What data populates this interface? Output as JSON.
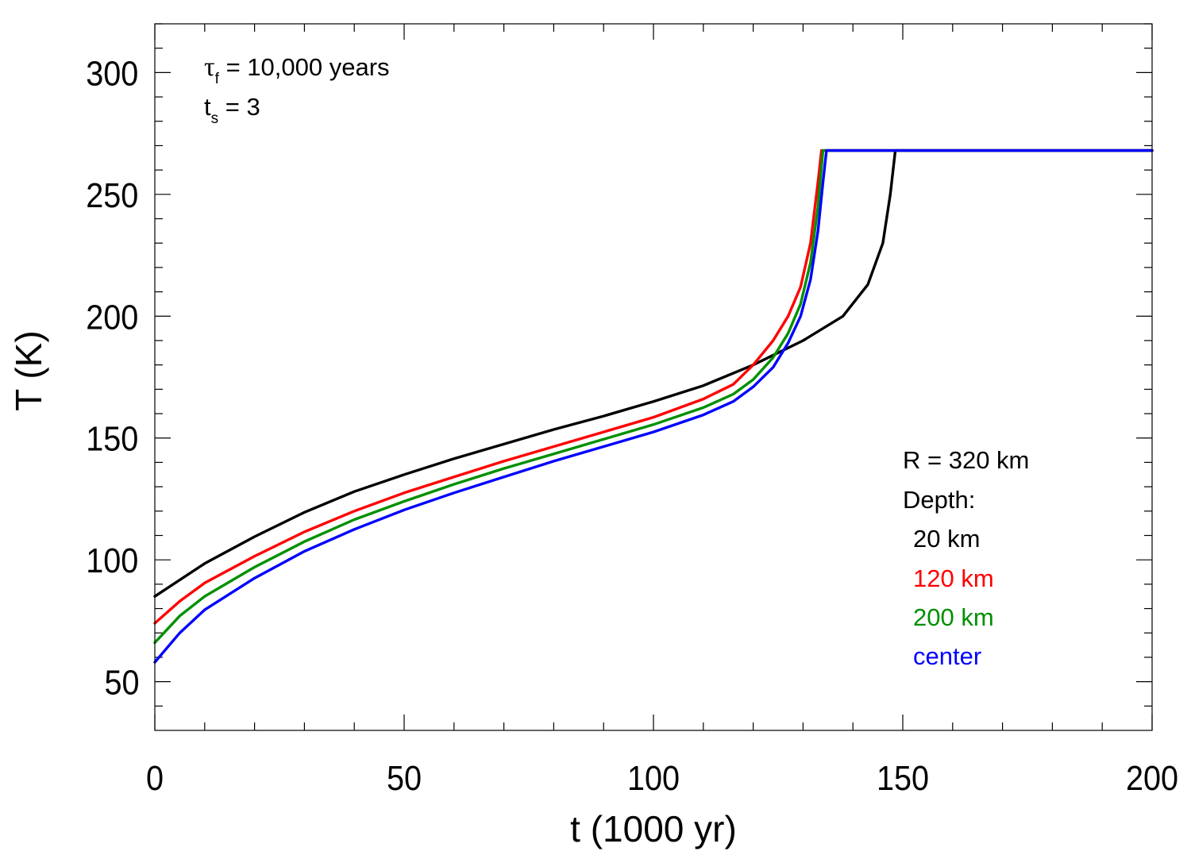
{
  "chart_data": {
    "type": "line",
    "xlabel": "t (1000 yr)",
    "ylabel": "T (K)",
    "xlim": [
      0,
      200
    ],
    "ylim": [
      30,
      320
    ],
    "x_ticks": [
      0,
      50,
      100,
      150,
      200
    ],
    "y_ticks": [
      50,
      100,
      150,
      200,
      250,
      300
    ],
    "grid": false,
    "annotations": {
      "tau_symbol": "τ",
      "tau_sub": "f",
      "tau_rest": " = 10,000 years",
      "ts_symbol": "t",
      "ts_sub": "s",
      "ts_rest": " = 3"
    },
    "legend": {
      "placement": "lower-right",
      "radius_text": "R = 320 km",
      "depth_title": "Depth:"
    },
    "series": [
      {
        "name": "20 km",
        "color": "#000000",
        "points": [
          [
            0,
            85
          ],
          [
            10,
            98.5
          ],
          [
            20,
            109.5
          ],
          [
            30,
            119.5
          ],
          [
            40,
            128
          ],
          [
            50,
            135
          ],
          [
            60,
            141.5
          ],
          [
            70,
            147.5
          ],
          [
            80,
            153.5
          ],
          [
            90,
            159
          ],
          [
            100,
            165
          ],
          [
            110,
            171.5
          ],
          [
            120,
            180
          ],
          [
            130,
            190
          ],
          [
            138,
            200
          ],
          [
            143,
            213
          ],
          [
            146,
            230
          ],
          [
            147.5,
            250
          ],
          [
            148.5,
            268
          ],
          [
            200,
            268
          ]
        ]
      },
      {
        "name": "120 km",
        "color": "#ff0000",
        "points": [
          [
            0,
            74
          ],
          [
            5,
            83
          ],
          [
            10,
            90.5
          ],
          [
            20,
            101.5
          ],
          [
            30,
            111.5
          ],
          [
            40,
            120
          ],
          [
            50,
            127.5
          ],
          [
            60,
            134
          ],
          [
            70,
            140.5
          ],
          [
            80,
            146.5
          ],
          [
            90,
            152.5
          ],
          [
            100,
            158.5
          ],
          [
            110,
            166
          ],
          [
            116,
            172
          ],
          [
            120,
            180
          ],
          [
            124,
            190
          ],
          [
            127,
            200
          ],
          [
            129.5,
            212
          ],
          [
            131.5,
            230
          ],
          [
            133,
            255
          ],
          [
            133.7,
            268
          ],
          [
            200,
            268
          ]
        ]
      },
      {
        "name": "200 km",
        "color": "#009000",
        "points": [
          [
            0,
            66
          ],
          [
            5,
            77
          ],
          [
            10,
            85
          ],
          [
            20,
            97
          ],
          [
            30,
            107.5
          ],
          [
            40,
            116.5
          ],
          [
            50,
            124
          ],
          [
            60,
            131
          ],
          [
            70,
            137.5
          ],
          [
            80,
            143.5
          ],
          [
            90,
            149.5
          ],
          [
            100,
            155.5
          ],
          [
            110,
            162.5
          ],
          [
            116,
            168
          ],
          [
            120,
            174
          ],
          [
            124,
            183
          ],
          [
            127,
            193
          ],
          [
            129.5,
            205
          ],
          [
            131.5,
            222
          ],
          [
            133,
            245
          ],
          [
            134,
            268
          ],
          [
            200,
            268
          ]
        ]
      },
      {
        "name": "center",
        "color": "#0000ff",
        "points": [
          [
            0,
            58
          ],
          [
            5,
            70
          ],
          [
            10,
            79.5
          ],
          [
            20,
            92.5
          ],
          [
            30,
            103.5
          ],
          [
            40,
            112.5
          ],
          [
            50,
            120.5
          ],
          [
            60,
            127.5
          ],
          [
            70,
            134
          ],
          [
            80,
            140.5
          ],
          [
            90,
            146.5
          ],
          [
            100,
            152.5
          ],
          [
            110,
            159.5
          ],
          [
            116,
            165
          ],
          [
            120,
            171
          ],
          [
            124,
            179
          ],
          [
            127,
            189
          ],
          [
            129.5,
            200
          ],
          [
            131.5,
            215
          ],
          [
            133,
            235
          ],
          [
            134,
            255
          ],
          [
            134.7,
            268
          ],
          [
            200,
            268
          ]
        ]
      }
    ]
  }
}
